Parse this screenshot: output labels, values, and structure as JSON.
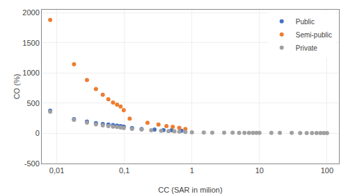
{
  "chart_data": {
    "type": "scatter",
    "xlabel": "CC (SAR in milion)",
    "ylabel": "CO (%)",
    "log": "x",
    "xlim": [
      0.006,
      150
    ],
    "ylim": [
      -500,
      2050
    ],
    "xticks": [
      {
        "value": 0.01,
        "label": "0,01"
      },
      {
        "value": 0.1,
        "label": "0,1"
      },
      1,
      10,
      100
    ],
    "yticks": [
      -500,
      0,
      500,
      1000,
      1500,
      2000
    ],
    "grid": true,
    "legend": "upper right",
    "marker": "circle",
    "series": [
      {
        "name": "Public",
        "color": "#4472c4",
        "x": [
          0.008,
          0.018,
          0.028,
          0.038,
          0.048,
          0.058,
          0.068,
          0.078,
          0.088,
          0.098,
          0.13,
          0.18,
          0.28,
          0.38,
          0.5,
          0.7
        ],
        "values": [
          375,
          235,
          195,
          170,
          155,
          145,
          138,
          130,
          120,
          112,
          90,
          72,
          62,
          55,
          50,
          42
        ]
      },
      {
        "name": "Semi-public",
        "color": "#ed7d31",
        "x": [
          0.008,
          0.018,
          0.028,
          0.038,
          0.048,
          0.058,
          0.068,
          0.078,
          0.088,
          0.098,
          0.12,
          0.22,
          0.32,
          0.42,
          0.52,
          0.65,
          0.8
        ],
        "values": [
          1880,
          1145,
          885,
          735,
          640,
          565,
          510,
          475,
          445,
          385,
          245,
          175,
          145,
          120,
          108,
          92,
          72
        ]
      },
      {
        "name": "Private",
        "color": "#a0a0a0",
        "x": [
          0.008,
          0.018,
          0.028,
          0.038,
          0.048,
          0.058,
          0.068,
          0.078,
          0.088,
          0.098,
          0.13,
          0.18,
          0.25,
          0.35,
          0.45,
          0.55,
          0.65,
          0.8,
          1.0,
          1.5,
          2.0,
          3.0,
          4.0,
          5.0,
          6.0,
          7.0,
          8.0,
          9.0,
          10.0,
          15.0,
          20.0,
          30.0,
          40.0,
          50.0,
          60.0,
          70.0,
          80.0,
          90.0,
          100.0
        ],
        "values": [
          360,
          225,
          178,
          150,
          132,
          120,
          112,
          105,
          98,
          90,
          75,
          62,
          50,
          42,
          38,
          33,
          28,
          22,
          18,
          14,
          12,
          10,
          10,
          9,
          8,
          8,
          8,
          8,
          8,
          7,
          7,
          7,
          6,
          6,
          6,
          6,
          6,
          5,
          5
        ]
      }
    ]
  }
}
